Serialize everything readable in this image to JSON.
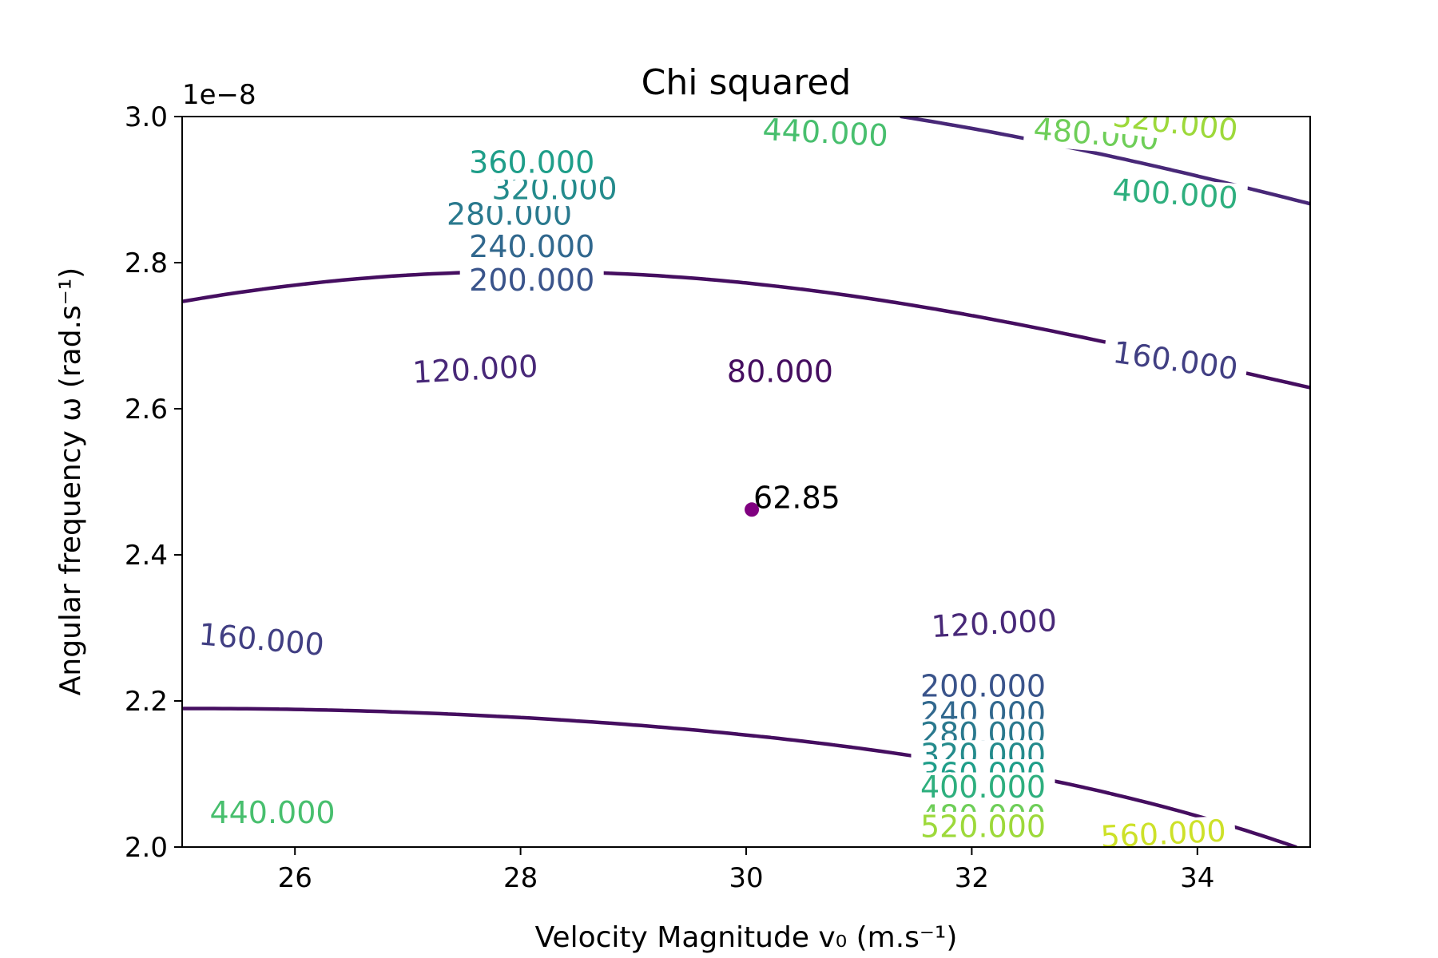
{
  "chart_data": {
    "type": "contour",
    "title": "Chi squared",
    "xlabel": "Velocity Magnitude v₀ (m.s⁻¹)",
    "ylabel": "Angular frequency ω (rad.s⁻¹)",
    "y_offset_label": "1e−8",
    "xlim": [
      25,
      35
    ],
    "ylim": [
      2.0,
      3.0
    ],
    "x_ticks": [
      26,
      28,
      30,
      32,
      34
    ],
    "x_tick_labels": [
      "26",
      "28",
      "30",
      "32",
      "34"
    ],
    "y_ticks": [
      2.0,
      2.2,
      2.4,
      2.6,
      2.8,
      3.0
    ],
    "y_tick_labels": [
      "2.0",
      "2.2",
      "2.4",
      "2.6",
      "2.8",
      "3.0"
    ],
    "levels": [
      80,
      120,
      160,
      200,
      240,
      280,
      320,
      360,
      400,
      440,
      480,
      520,
      560
    ],
    "level_label_format": "fixed-3",
    "colormap": "viridis",
    "model": {
      "chi_min": 62.85,
      "x0": 30.05,
      "y0": 2.462,
      "sx": 3.5,
      "sy": 0.0934,
      "rho": -0.6,
      "cubic": 1.2
    },
    "minimum": {
      "x": 30.05,
      "y": 2.462,
      "label": "62.85",
      "color": "#800080"
    },
    "contour_labels": [
      {
        "level": 80,
        "text": "80.000",
        "x": 30.3,
        "y": 2.645,
        "angle": 0
      },
      {
        "level": 120,
        "text": "120.000",
        "x": 27.6,
        "y": 2.648,
        "angle": -3
      },
      {
        "level": 120,
        "text": "120.000",
        "x": 32.2,
        "y": 2.3,
        "angle": -3
      },
      {
        "level": 160,
        "text": "160.000",
        "x": 33.8,
        "y": 2.66,
        "angle": 8
      },
      {
        "level": 160,
        "text": "160.000",
        "x": 25.7,
        "y": 2.278,
        "angle": 5
      },
      {
        "level": 200,
        "text": "200.000",
        "x": 28.1,
        "y": 2.77,
        "angle": 0
      },
      {
        "level": 200,
        "text": "200.000",
        "x": 32.1,
        "y": 2.214,
        "angle": 0
      },
      {
        "level": 240,
        "text": "240.000",
        "x": 28.1,
        "y": 2.816,
        "angle": 0
      },
      {
        "level": 240,
        "text": "240.000",
        "x": 32.1,
        "y": 2.177,
        "angle": 0
      },
      {
        "level": 280,
        "text": "280.000",
        "x": 27.9,
        "y": 2.86,
        "angle": 0
      },
      {
        "level": 280,
        "text": "280.000",
        "x": 32.1,
        "y": 2.149,
        "angle": 0
      },
      {
        "level": 320,
        "text": "320.000",
        "x": 28.3,
        "y": 2.895,
        "angle": 0
      },
      {
        "level": 320,
        "text": "320.000",
        "x": 32.1,
        "y": 2.12,
        "angle": 0
      },
      {
        "level": 360,
        "text": "360.000",
        "x": 28.1,
        "y": 2.931,
        "angle": 0
      },
      {
        "level": 360,
        "text": "360.000",
        "x": 32.1,
        "y": 2.094,
        "angle": 0
      },
      {
        "level": 400,
        "text": "400.000",
        "x": 33.8,
        "y": 2.888,
        "angle": 4
      },
      {
        "level": 400,
        "text": "400.000",
        "x": 32.1,
        "y": 2.076,
        "angle": 0
      },
      {
        "level": 440,
        "text": "440.000",
        "x": 30.7,
        "y": 2.972,
        "angle": 3
      },
      {
        "level": 440,
        "text": "440.000",
        "x": 25.8,
        "y": 2.041,
        "angle": 0
      },
      {
        "level": 480,
        "text": "480.000",
        "x": 33.1,
        "y": 2.97,
        "angle": 5
      },
      {
        "level": 480,
        "text": "480.000",
        "x": 32.1,
        "y": 2.036,
        "angle": 0
      },
      {
        "level": 520,
        "text": "520.000",
        "x": 33.8,
        "y": 2.985,
        "angle": 7
      },
      {
        "level": 520,
        "text": "520.000",
        "x": 32.1,
        "y": 2.022,
        "angle": 0
      },
      {
        "level": 560,
        "text": "560.000",
        "x": 33.7,
        "y": 2.012,
        "angle": -3
      }
    ]
  }
}
